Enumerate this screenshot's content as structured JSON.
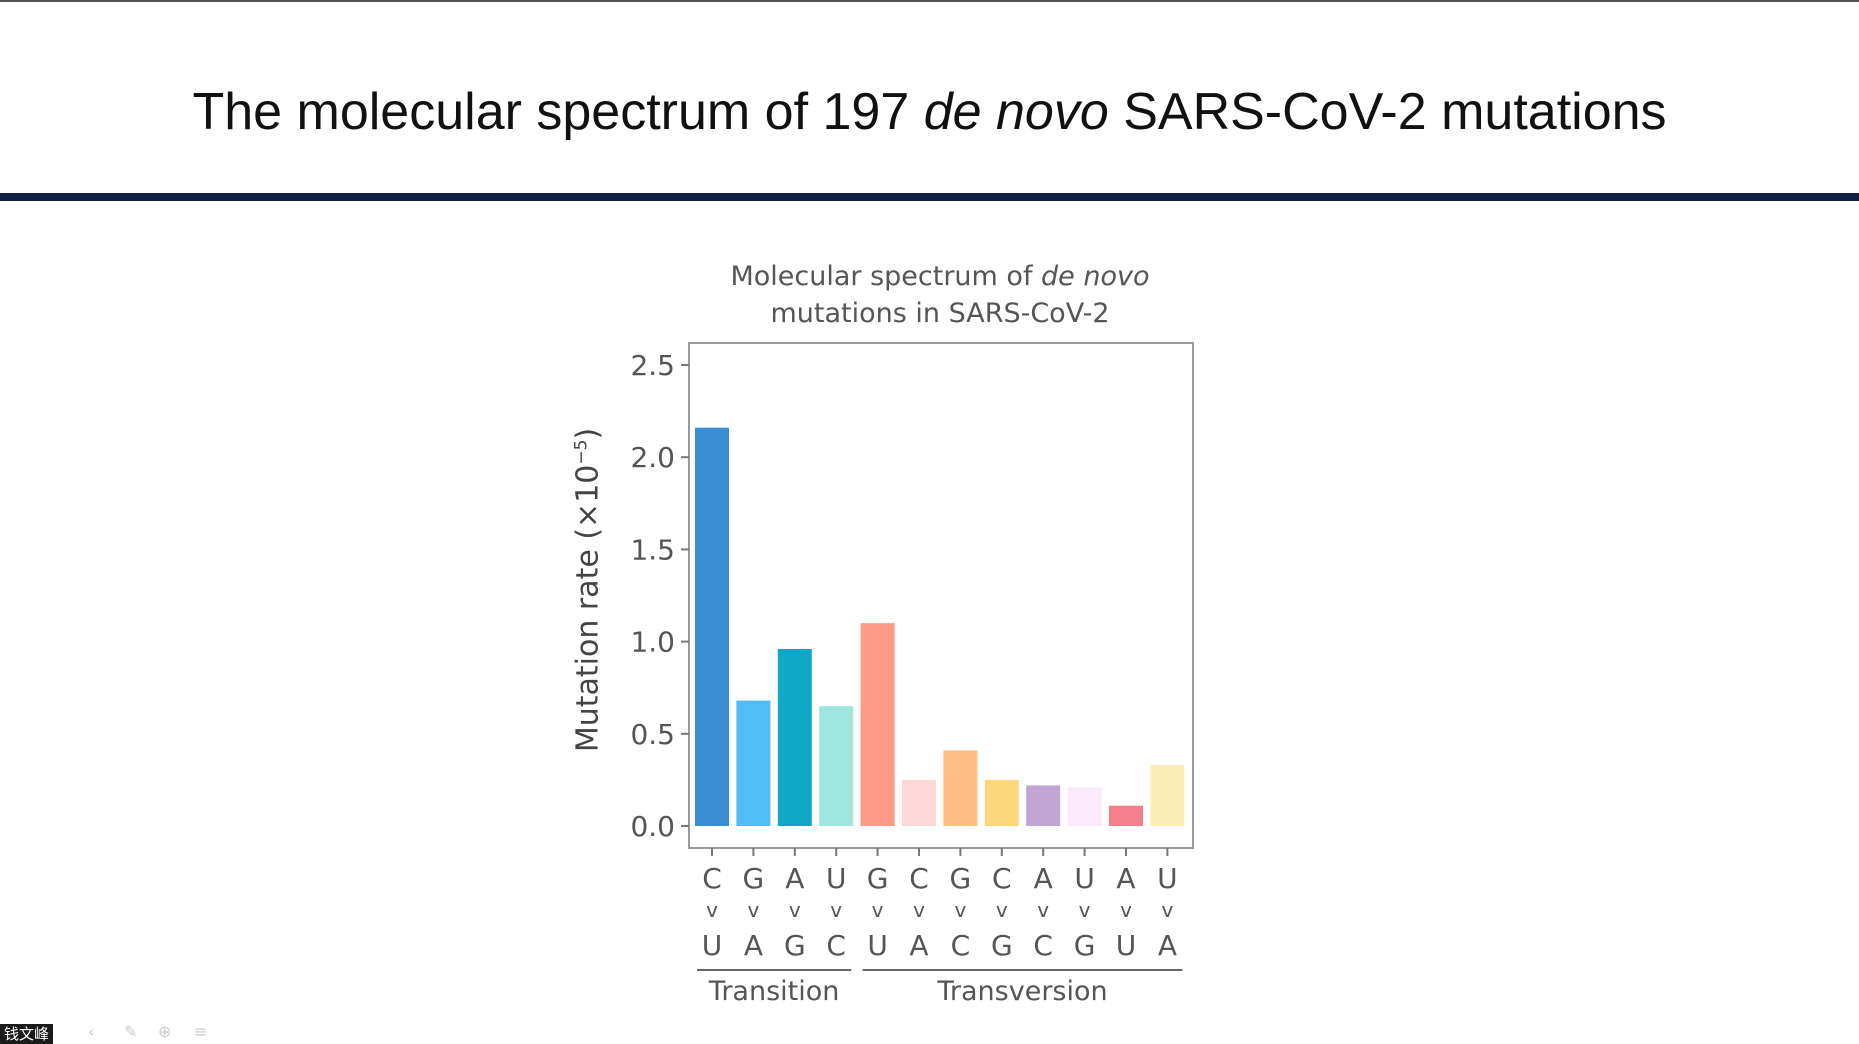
{
  "slide": {
    "title_part1": "The molecular spectrum of 197 ",
    "title_italic": "de novo",
    "title_part2": " SARS-CoV-2 mutations"
  },
  "presenter_name": "钱文峰",
  "chart_data": {
    "type": "bar",
    "title_line1_prefix": "Molecular spectrum of ",
    "title_line1_italic": "de novo",
    "title_line2": "mutations in SARS-CoV-2",
    "ylabel_main": "Mutation rate (×10",
    "ylabel_exp": "−5",
    "ylabel_close": ")",
    "ylim": [
      0,
      2.5
    ],
    "yticks": [
      "0.0",
      "0.5",
      "1.0",
      "1.5",
      "2.0",
      "2.5"
    ],
    "arrow_glyph": "v",
    "categories": [
      {
        "from": "C",
        "to": "U",
        "value": 2.16,
        "color": "#3a8fd4"
      },
      {
        "from": "G",
        "to": "A",
        "value": 0.68,
        "color": "#4fbef5"
      },
      {
        "from": "A",
        "to": "G",
        "value": 0.96,
        "color": "#10a7c8"
      },
      {
        "from": "U",
        "to": "C",
        "value": 0.65,
        "color": "#9fe6de"
      },
      {
        "from": "G",
        "to": "U",
        "value": 1.1,
        "color": "#fb9a86"
      },
      {
        "from": "C",
        "to": "A",
        "value": 0.25,
        "color": "#fdd8d8"
      },
      {
        "from": "G",
        "to": "C",
        "value": 0.41,
        "color": "#fdbf84"
      },
      {
        "from": "C",
        "to": "G",
        "value": 0.25,
        "color": "#fdd67c"
      },
      {
        "from": "A",
        "to": "C",
        "value": 0.22,
        "color": "#c1a5d6"
      },
      {
        "from": "U",
        "to": "G",
        "value": 0.21,
        "color": "#fbeafb"
      },
      {
        "from": "A",
        "to": "U",
        "value": 0.11,
        "color": "#f57f8b"
      },
      {
        "from": "U",
        "to": "A",
        "value": 0.33,
        "color": "#fdecb5"
      }
    ],
    "groups": [
      {
        "label": "Transition",
        "start": 0,
        "end": 3
      },
      {
        "label": "Transversion",
        "start": 4,
        "end": 11
      }
    ]
  }
}
